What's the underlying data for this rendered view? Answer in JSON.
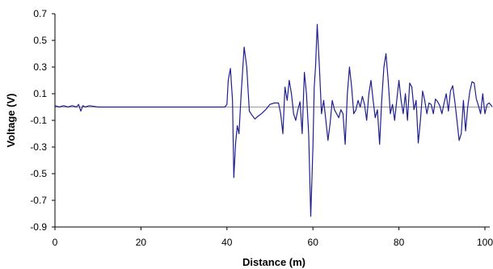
{
  "chart_data": {
    "type": "line",
    "title": "",
    "xlabel": "Distance (m)",
    "ylabel": "Voltage (V)",
    "xlim": [
      0,
      100
    ],
    "ylim": [
      -0.9,
      0.7
    ],
    "x_ticks": [
      0,
      20,
      40,
      60,
      80,
      100
    ],
    "y_ticks": [
      0.7,
      0.5,
      0.3,
      0.1,
      -0.1,
      -0.3,
      -0.5,
      -0.7,
      -0.9
    ],
    "x_tick_labels": [
      "0",
      "20",
      "40",
      "60",
      "80",
      "100"
    ],
    "y_tick_labels": [
      "0.7",
      "0.5",
      "0.3",
      "0.1",
      "-0.1",
      "-0.3",
      "-0.5",
      "-0.7",
      "-0.9"
    ],
    "grid": false,
    "reference_line_y": 0,
    "colors": {
      "series": "#1f1f8f",
      "reference": "#999999",
      "axis": "#000000"
    },
    "series": [
      {
        "x": [
          0,
          1,
          2,
          3,
          4,
          5,
          5.5,
          6,
          6.5,
          7,
          8,
          10,
          12,
          14,
          16,
          18,
          20,
          22,
          24,
          26,
          28,
          30,
          32,
          34,
          36,
          38,
          39.5,
          40,
          40.3,
          40.8,
          41.3,
          41.6,
          42,
          42.4,
          42.8,
          43.3,
          44,
          44.6,
          45.2,
          45.8,
          46.5,
          47.2,
          48,
          49,
          50,
          51,
          52,
          52.5,
          53,
          53.5,
          54,
          54.5,
          55,
          55.5,
          56,
          56.5,
          57,
          57.5,
          58,
          58.5,
          59,
          59.5,
          60,
          60.3,
          60.6,
          61,
          61.5,
          62,
          62.5,
          63,
          63.5,
          64,
          64.5,
          65,
          65.5,
          66,
          66.5,
          67,
          67.5,
          68,
          68.5,
          69,
          69.5,
          70,
          70.5,
          71,
          71.5,
          72,
          72.5,
          73,
          73.5,
          74,
          74.5,
          75,
          75.5,
          76,
          76.5,
          77,
          77.5,
          78,
          78.5,
          79,
          79.5,
          80,
          80.5,
          81,
          81.5,
          82,
          82.5,
          83,
          83.5,
          84,
          84.5,
          85,
          85.5,
          86,
          86.5,
          87,
          87.5,
          88,
          88.5,
          89,
          89.5,
          90,
          90.5,
          91,
          91.5,
          92,
          92.5,
          93,
          93.5,
          94,
          94.5,
          95,
          95.5,
          96,
          96.5,
          97,
          97.5,
          98,
          98.5,
          99,
          99.5,
          100,
          100.5,
          101,
          101.5,
          102
        ],
        "values": [
          0.01,
          0.0,
          0.01,
          0.0,
          0.01,
          0.0,
          0.02,
          -0.03,
          0.01,
          0.0,
          0.01,
          0.0,
          0.0,
          0.0,
          0.0,
          0.0,
          0.0,
          0.0,
          0.0,
          0.0,
          0.0,
          0.0,
          0.0,
          0.0,
          0.0,
          0.0,
          0.0,
          0.02,
          0.2,
          0.29,
          0.05,
          -0.53,
          -0.28,
          -0.14,
          -0.2,
          0.1,
          0.45,
          0.3,
          -0.03,
          -0.06,
          -0.09,
          -0.07,
          -0.05,
          -0.02,
          0.02,
          0.03,
          0.03,
          -0.05,
          -0.2,
          0.15,
          0.05,
          0.2,
          0.1,
          -0.05,
          -0.1,
          -0.02,
          0.04,
          -0.2,
          0.26,
          0.1,
          -0.2,
          -0.82,
          -0.3,
          0.15,
          0.3,
          0.62,
          0.3,
          -0.05,
          0.05,
          -0.1,
          -0.25,
          -0.12,
          0.05,
          -0.02,
          -0.05,
          -0.08,
          -0.02,
          -0.05,
          -0.28,
          0.1,
          0.3,
          0.15,
          -0.05,
          -0.02,
          0.05,
          0.0,
          0.08,
          0.02,
          -0.1,
          0.1,
          0.2,
          0.05,
          -0.08,
          -0.02,
          -0.28,
          0.05,
          0.3,
          0.4,
          0.2,
          -0.05,
          0.02,
          -0.1,
          0.05,
          0.2,
          0.05,
          -0.05,
          0.1,
          -0.1,
          0.18,
          0.15,
          -0.02,
          0.05,
          -0.27,
          -0.1,
          0.12,
          0.05,
          -0.05,
          0.03,
          0.02,
          -0.05,
          0.06,
          0.04,
          0.01,
          -0.05,
          0.03,
          0.1,
          -0.03,
          0.12,
          0.16,
          0.04,
          -0.1,
          -0.25,
          -0.2,
          0.05,
          -0.18,
          0.0,
          0.12,
          0.19,
          0.18,
          0.06,
          0.01,
          -0.05,
          0.1,
          -0.05,
          0.02,
          0.03,
          0.01,
          0.0
        ]
      }
    ]
  }
}
